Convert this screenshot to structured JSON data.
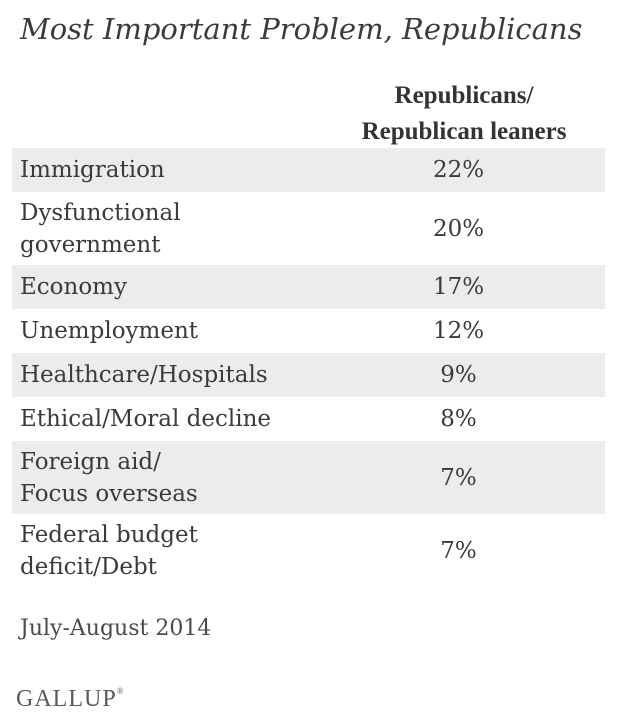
{
  "chart_data": {
    "type": "table",
    "title": "Most Important Problem, Republicans",
    "column_header": [
      "Republicans/",
      "Republican leaners"
    ],
    "rows": [
      {
        "label": [
          "Immigration"
        ],
        "value": "22%"
      },
      {
        "label": [
          "Dysfunctional",
          "government"
        ],
        "value": "20%"
      },
      {
        "label": [
          "Economy"
        ],
        "value": "17%"
      },
      {
        "label": [
          "Unemployment"
        ],
        "value": "12%"
      },
      {
        "label": [
          "Healthcare/Hospitals"
        ],
        "value": "9%"
      },
      {
        "label": [
          "Ethical/Moral decline"
        ],
        "value": "8%"
      },
      {
        "label": [
          "Foreign aid/",
          "Focus overseas"
        ],
        "value": "7%"
      },
      {
        "label": [
          "Federal budget",
          "deficit/Debt"
        ],
        "value": "7%"
      }
    ],
    "note": "July-August 2014",
    "row_shading": "#ececec"
  },
  "brand": {
    "name": "GALLUP",
    "mark": "®"
  }
}
